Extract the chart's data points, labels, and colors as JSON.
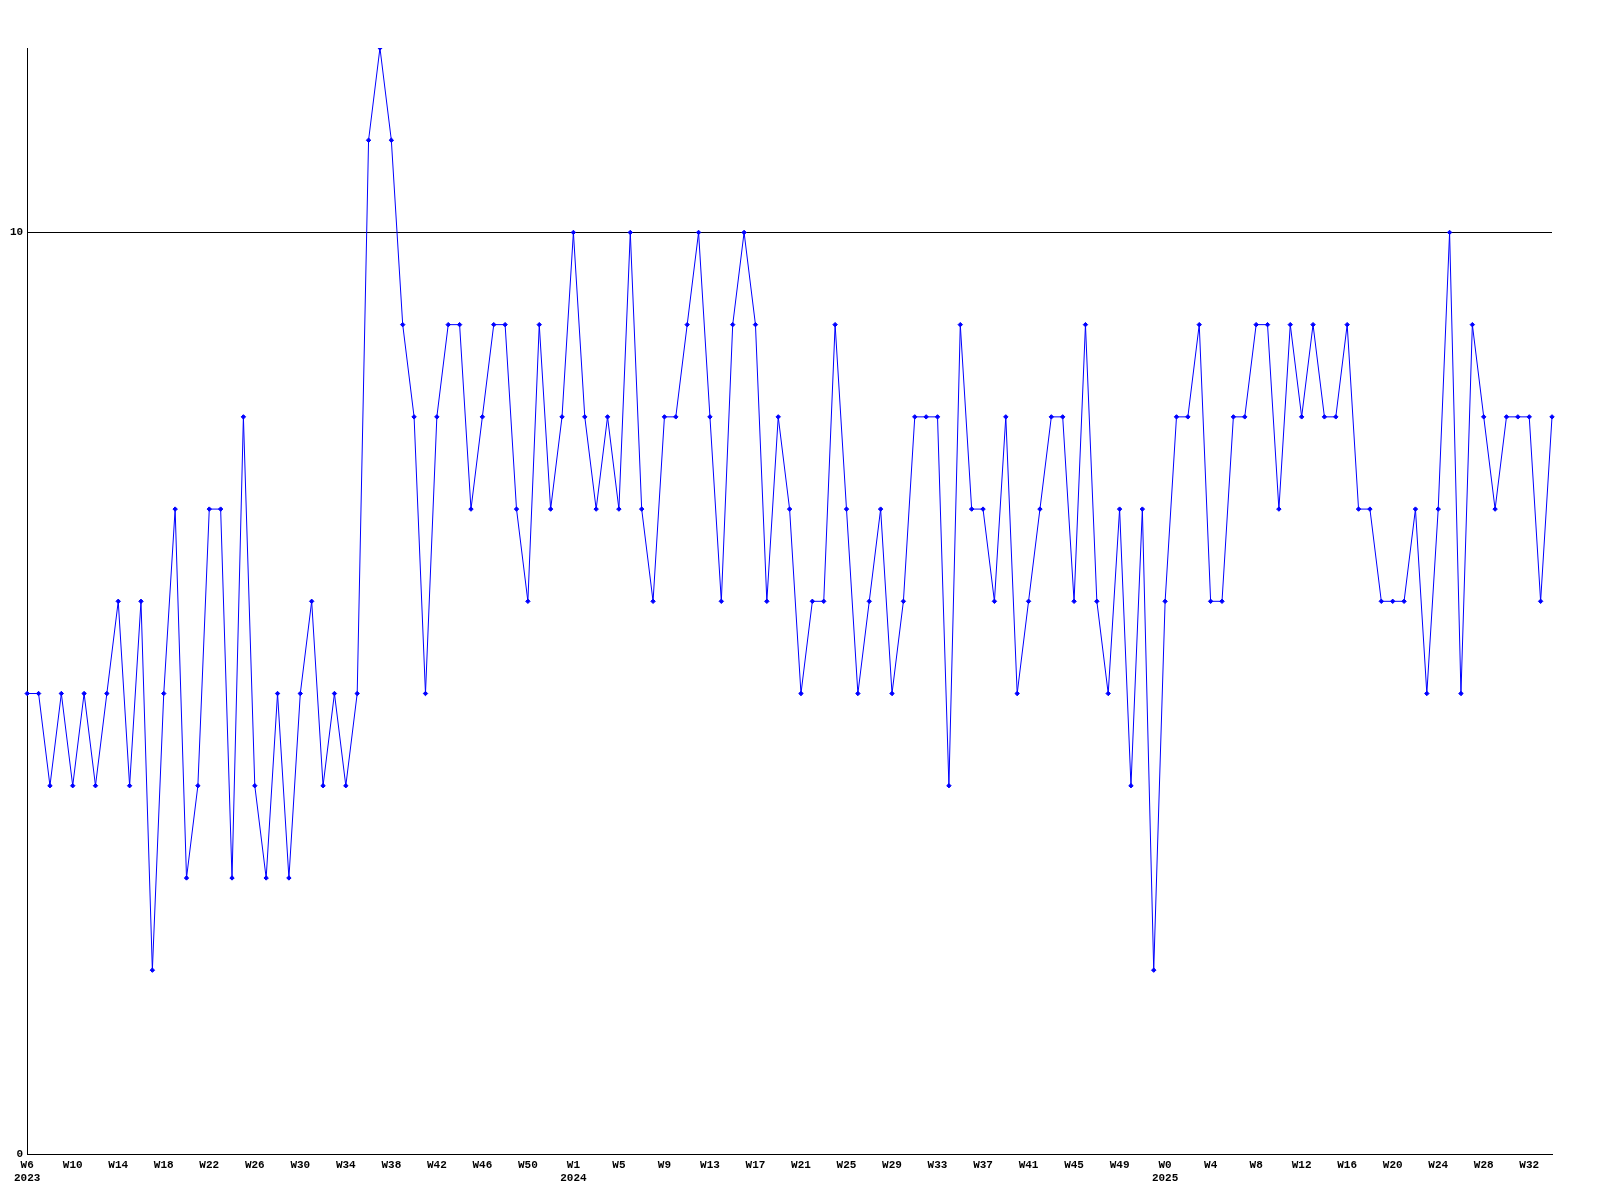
{
  "chart_data": {
    "type": "line",
    "categories": [
      "W6\n2023",
      null,
      null,
      null,
      "W10",
      null,
      null,
      null,
      "W14",
      null,
      null,
      null,
      "W18",
      null,
      null,
      null,
      "W22",
      null,
      null,
      null,
      "W26",
      null,
      null,
      null,
      "W30",
      null,
      null,
      null,
      "W34",
      null,
      null,
      null,
      "W38",
      null,
      null,
      null,
      "W42",
      null,
      null,
      null,
      "W46",
      null,
      null,
      null,
      "W50",
      null,
      null,
      null,
      "W1\n2024",
      null,
      null,
      null,
      "W5",
      null,
      null,
      null,
      "W9",
      null,
      null,
      null,
      "W13",
      null,
      null,
      null,
      "W17",
      null,
      null,
      null,
      "W21",
      null,
      null,
      null,
      "W25",
      null,
      null,
      null,
      "W29",
      null,
      null,
      null,
      "W33",
      null,
      null,
      null,
      "W37",
      null,
      null,
      null,
      "W41",
      null,
      null,
      null,
      "W45",
      null,
      null,
      null,
      "W49",
      null,
      null,
      null,
      "W0\n2025",
      null,
      null,
      null,
      "W4",
      null,
      null,
      null,
      "W8",
      null,
      null,
      null,
      "W12",
      null,
      null,
      null,
      "W16",
      null,
      null,
      null,
      "W20",
      null,
      null,
      null,
      "W24",
      null,
      null,
      null,
      "W28",
      null,
      null,
      null,
      "W32",
      null,
      null
    ],
    "series": [
      {
        "color": "#0000ff",
        "values": [
          5,
          5,
          4,
          5,
          4,
          5,
          4,
          5,
          6,
          4,
          6,
          2,
          5,
          7,
          3,
          4,
          7,
          7,
          3,
          8,
          4,
          3,
          5,
          3,
          5,
          6,
          4,
          5,
          4,
          5,
          11,
          12,
          11,
          9,
          8,
          5,
          8,
          9,
          9,
          7,
          8,
          9,
          9,
          7,
          6,
          9,
          7,
          8,
          10,
          8,
          7,
          8,
          7,
          10,
          7,
          6,
          8,
          8,
          9,
          10,
          8,
          6,
          9,
          10,
          9,
          6,
          8,
          7,
          5,
          6,
          6,
          9,
          7,
          5,
          6,
          7,
          5,
          6,
          8,
          8,
          8,
          4,
          9,
          7,
          7,
          6,
          8,
          5,
          6,
          7,
          8,
          8,
          6,
          9,
          6,
          5,
          7,
          4,
          7,
          2,
          6,
          8,
          8,
          9,
          6,
          6,
          8,
          8,
          9,
          9,
          7,
          9,
          8,
          9,
          8,
          8,
          9,
          7,
          7,
          6,
          6,
          6,
          7,
          5,
          7,
          10,
          5,
          9,
          8,
          7,
          8,
          8,
          8,
          6,
          8
        ]
      }
    ],
    "ylim": [
      0,
      12
    ],
    "yticks": [
      0,
      10
    ],
    "grid": "y",
    "marker": "diamond",
    "line_style": "solid"
  }
}
